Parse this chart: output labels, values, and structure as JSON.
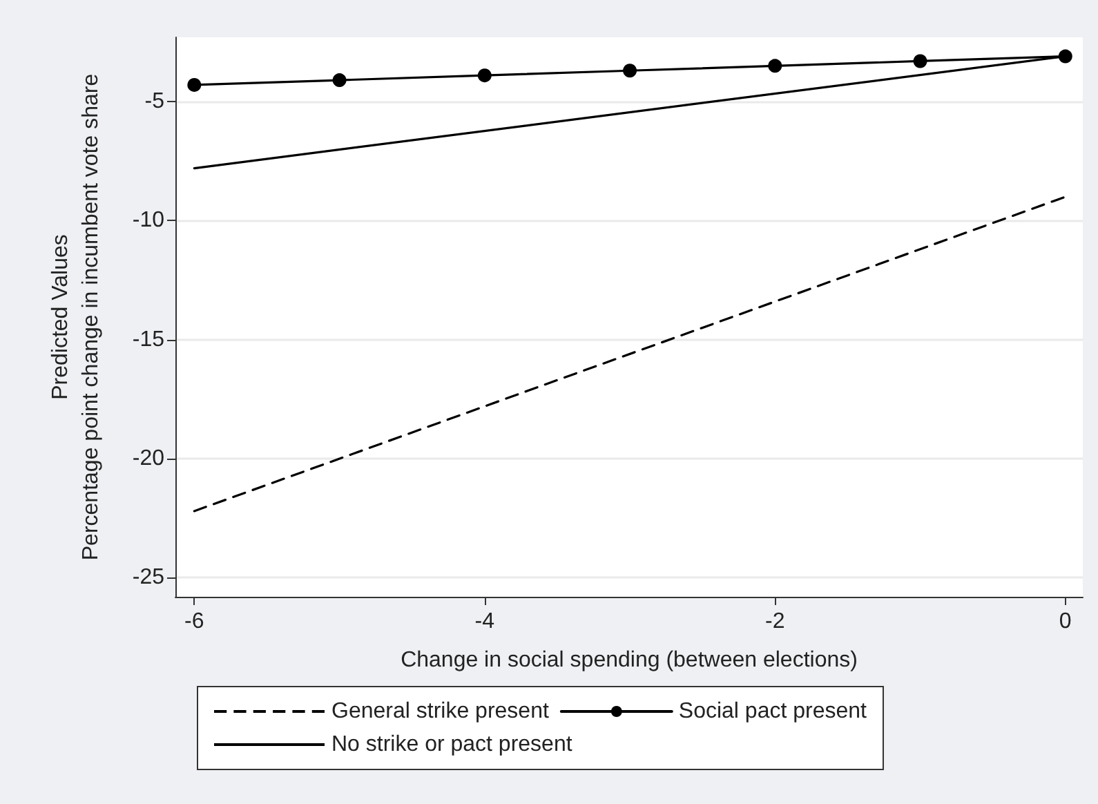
{
  "chart_data": {
    "type": "line",
    "xlabel": "Change in social spending (between elections)",
    "ylabel": "Predicted Values\nPercentage point change in incumbent vote share",
    "xlim": [
      -6.13,
      0.12
    ],
    "xticks": [
      -6,
      -4,
      -2,
      0
    ],
    "ylim": [
      -25.8,
      -2.3
    ],
    "yticks": [
      -25,
      -20,
      -15,
      -10,
      -5
    ],
    "grid": "y",
    "legend": "bottom",
    "series": [
      {
        "name": "General strike present",
        "color": "#000000",
        "line_style": "dashed",
        "marker": "none",
        "x": [
          -6,
          0
        ],
        "values": [
          -22.2,
          -9.0
        ]
      },
      {
        "name": "Social pact present",
        "color": "#000000",
        "line_style": "solid",
        "marker": "circle",
        "x": [
          -6,
          -5,
          -4,
          -3,
          -2,
          -1,
          0
        ],
        "values": [
          -4.3,
          -4.1,
          -3.9,
          -3.7,
          -3.5,
          -3.3,
          -3.1
        ]
      },
      {
        "name": "No strike or pact present",
        "color": "#000000",
        "line_style": "solid",
        "marker": "none",
        "x": [
          -6,
          0
        ],
        "values": [
          -7.8,
          -3.1
        ]
      }
    ]
  }
}
